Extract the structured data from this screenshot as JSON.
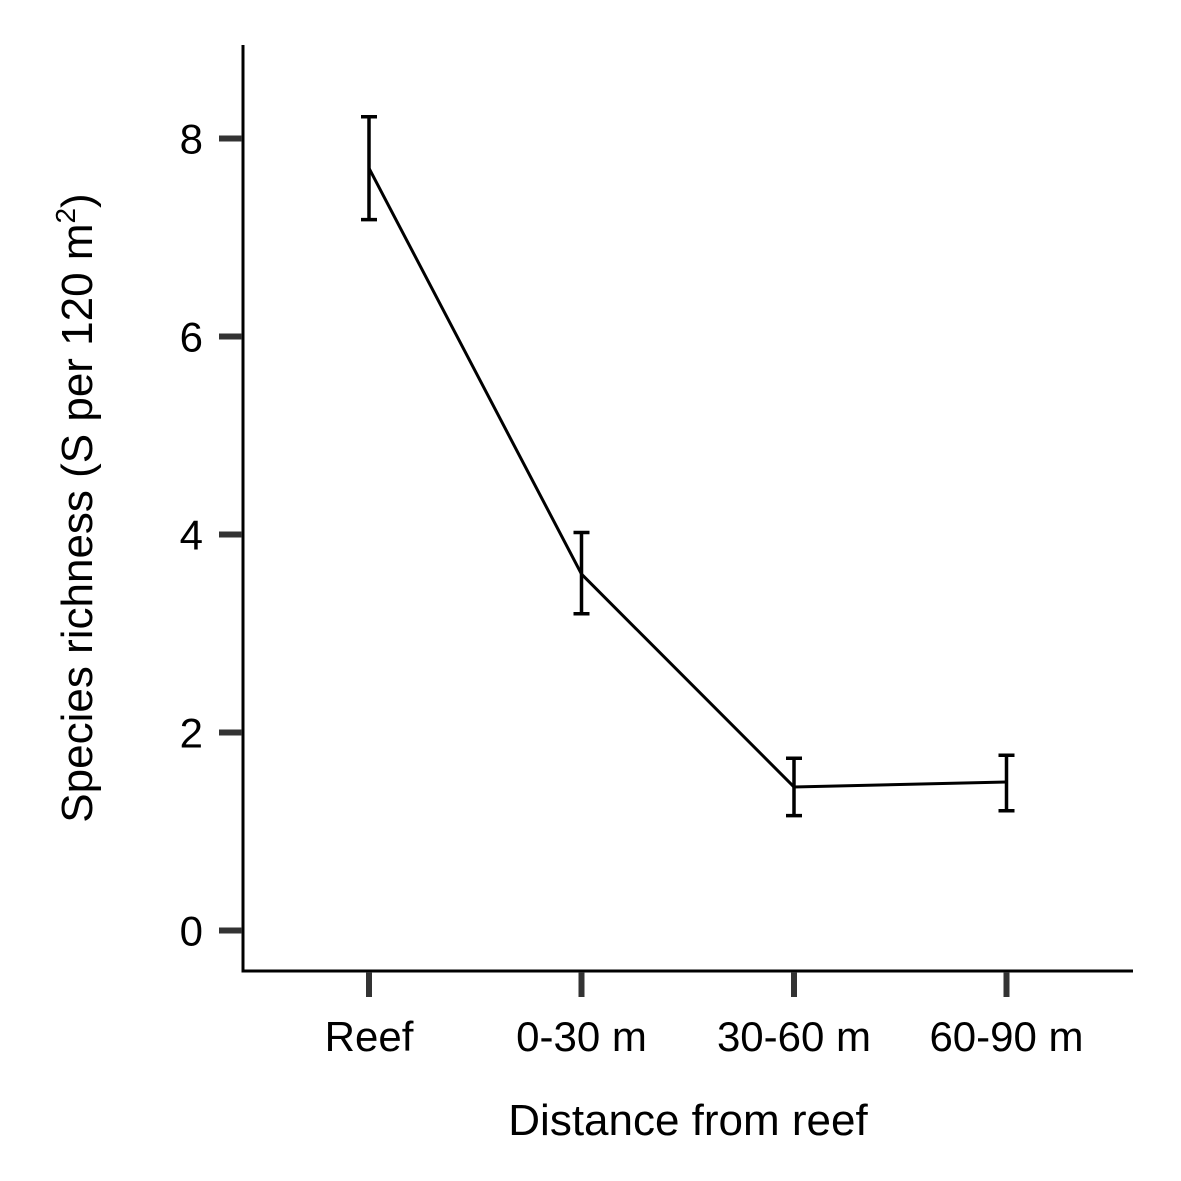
{
  "chart_data": {
    "type": "line",
    "xlabel": "Distance from reef",
    "ylabel": {
      "text": "Species richness (S per 120 m",
      "superscript": "2",
      "close": ")"
    },
    "categories": [
      "Reef",
      "0-30 m",
      "30-60 m",
      "60-90 m"
    ],
    "series": [
      {
        "values": [
          7.7,
          3.6,
          1.45,
          1.5
        ],
        "error_lower": [
          7.18,
          3.2,
          1.16,
          1.21
        ],
        "error_upper": [
          8.22,
          4.02,
          1.74,
          1.77
        ]
      }
    ],
    "ylim": [
      -0.4,
      8.8
    ],
    "yticks": [
      0,
      2,
      4,
      6,
      8
    ],
    "grid": false,
    "legend": "none",
    "color": "#000000"
  }
}
